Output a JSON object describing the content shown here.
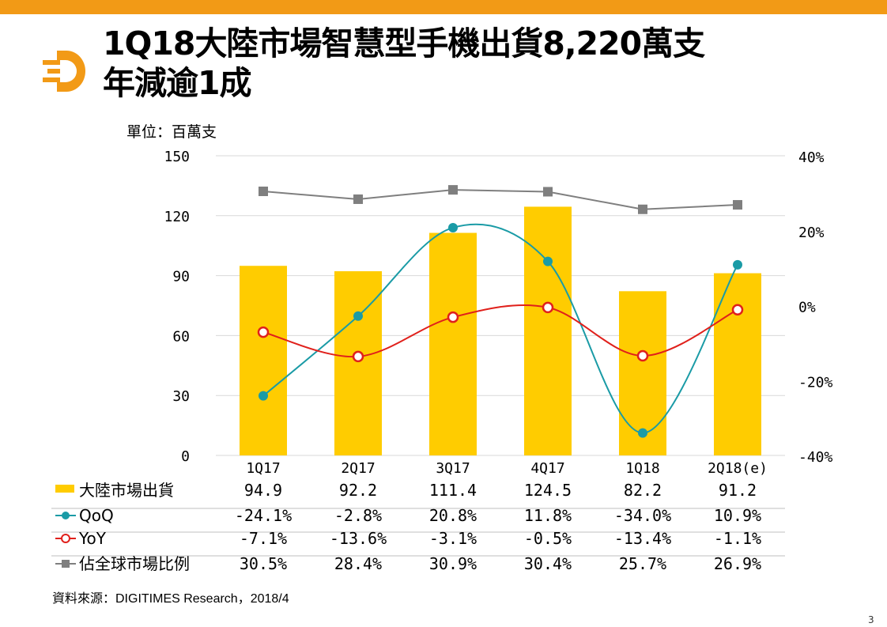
{
  "slide": {
    "title_line1": "1Q18大陸市場智慧型手機出貨8,220萬支",
    "title_line2": "年減逾1成",
    "unit": "單位：百萬支",
    "source": "資料來源：DIGITIMES Research，2018/4",
    "page_number": "3"
  },
  "colors": {
    "brand": "#f29a16",
    "bar": "#ffcc00",
    "qoq": "#1a9ba6",
    "yoy": "#e0201b",
    "share": "#7f7f7f"
  },
  "chart_data": {
    "type": "bar",
    "categories": [
      "1Q17",
      "2Q17",
      "3Q17",
      "4Q17",
      "1Q18",
      "2Q18(e)"
    ],
    "y_left": {
      "ylim": [
        0,
        150
      ],
      "ticks": [
        "0",
        "30",
        "60",
        "90",
        "120",
        "150"
      ]
    },
    "y_right": {
      "ylim": [
        -40,
        40
      ],
      "ticks": [
        "-40%",
        "-20%",
        "0%",
        "20%",
        "40%"
      ]
    },
    "series": [
      {
        "name": "大陸市場出貨",
        "kind": "bar",
        "axis": "left",
        "values": [
          94.9,
          92.2,
          111.4,
          124.5,
          82.2,
          91.2
        ],
        "labels": [
          "94.9",
          "92.2",
          "111.4",
          "124.5",
          "82.2",
          "91.2"
        ]
      },
      {
        "name": "QoQ",
        "kind": "line",
        "axis": "right",
        "marker": "circle-filled",
        "values": [
          -24.1,
          -2.8,
          20.8,
          11.8,
          -34.0,
          10.9
        ],
        "labels": [
          "-24.1%",
          "-2.8%",
          "20.8%",
          "11.8%",
          "-34.0%",
          "10.9%"
        ]
      },
      {
        "name": "YoY",
        "kind": "line",
        "axis": "right",
        "marker": "circle-open",
        "values": [
          -7.1,
          -13.6,
          -3.1,
          -0.5,
          -13.4,
          -1.1
        ],
        "labels": [
          "-7.1%",
          "-13.6%",
          "-3.1%",
          "-0.5%",
          "-13.4%",
          "-1.1%"
        ]
      },
      {
        "name": "佔全球市場比例",
        "kind": "line",
        "axis": "right",
        "marker": "square",
        "values": [
          30.5,
          28.4,
          30.9,
          30.4,
          25.7,
          26.9
        ],
        "labels": [
          "30.5%",
          "28.4%",
          "30.9%",
          "30.4%",
          "25.7%",
          "26.9%"
        ]
      }
    ]
  }
}
